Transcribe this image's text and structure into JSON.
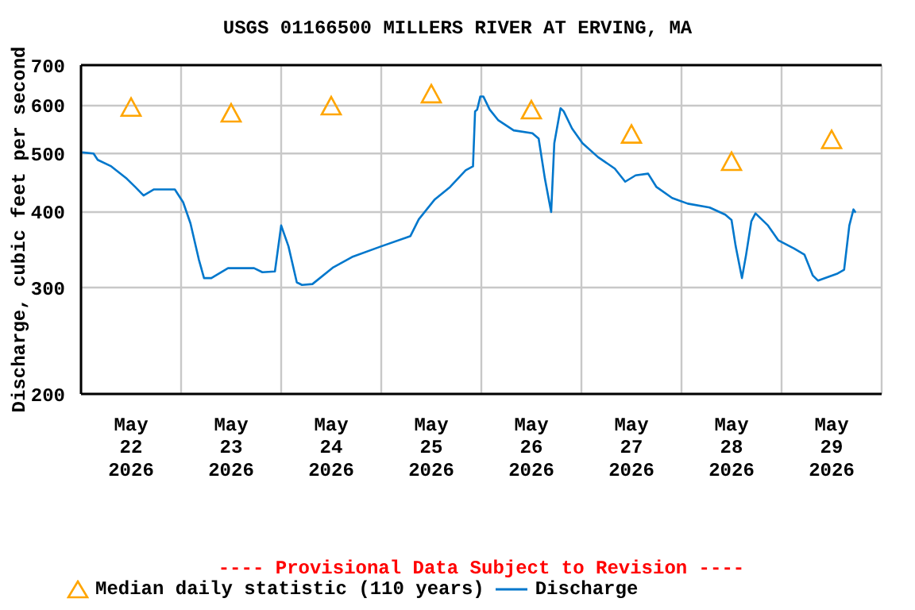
{
  "chart_data": {
    "type": "line",
    "title": "USGS 01166500 MILLERS RIVER AT ERVING, MA",
    "ylabel": "Discharge, cubic feet per second",
    "log": "y",
    "grid": true,
    "legend": "bottom",
    "xlim": [
      "2026-05-22T00:00",
      "2026-05-30T00:00"
    ],
    "xticks": [
      {
        "value": "2026-05-22T00:00",
        "label": null
      },
      {
        "value": "2026-05-22T12:00",
        "label": "May 22 2026"
      },
      {
        "value": "2026-05-23T00:00",
        "label": null
      },
      {
        "value": "2026-05-23T12:00",
        "label": "May 23 2026"
      },
      {
        "value": "2026-05-24T00:00",
        "label": null
      },
      {
        "value": "2026-05-24T12:00",
        "label": "May 24 2026"
      },
      {
        "value": "2026-05-25T00:00",
        "label": null
      },
      {
        "value": "2026-05-25T12:00",
        "label": "May 25 2026"
      },
      {
        "value": "2026-05-26T00:00",
        "label": null
      },
      {
        "value": "2026-05-26T12:00",
        "label": "May 26 2026"
      },
      {
        "value": "2026-05-27T00:00",
        "label": null
      },
      {
        "value": "2026-05-27T12:00",
        "label": "May 27 2026"
      },
      {
        "value": "2026-05-28T00:00",
        "label": null
      },
      {
        "value": "2026-05-28T12:00",
        "label": "May 28 2026"
      },
      {
        "value": "2026-05-29T00:00",
        "label": null
      },
      {
        "value": "2026-05-29T12:00",
        "label": "May 29 2026"
      },
      {
        "value": "2026-05-30T00:00",
        "label": null
      }
    ],
    "ylim": [
      200,
      700
    ],
    "yticks": [
      200,
      300,
      400,
      500,
      600,
      700
    ],
    "annotations": [
      "---- Provisional Data Subject to Revision ----"
    ],
    "series": [
      {
        "name": "Median daily statistic (110 years)",
        "type": "scatter",
        "marker": "triangle",
        "color": "#ffa500",
        "x": [
          "2026-05-22T12:00",
          "2026-05-23T12:00",
          "2026-05-24T12:00",
          "2026-05-25T12:00",
          "2026-05-26T12:00",
          "2026-05-27T12:00",
          "2026-05-28T12:00",
          "2026-05-29T12:00"
        ],
        "values": [
          595,
          582,
          598,
          626,
          589,
          537,
          484,
          526
        ]
      },
      {
        "name": "Discharge",
        "marker": "none",
        "line_style": "solid",
        "color": "#0077cc",
        "x": [
          "2026-05-22T00:15",
          "2026-05-22T03:00",
          "2026-05-22T04:00",
          "2026-05-22T07:15",
          "2026-05-22T11:00",
          "2026-05-22T13:00",
          "2026-05-22T15:00",
          "2026-05-22T17:30",
          "2026-05-22T22:30",
          "2026-05-23T00:30",
          "2026-05-23T02:15",
          "2026-05-23T04:15",
          "2026-05-23T05:30",
          "2026-05-23T07:15",
          "2026-05-23T11:15",
          "2026-05-23T17:30",
          "2026-05-23T19:30",
          "2026-05-23T22:30",
          "2026-05-24T00:00",
          "2026-05-24T01:45",
          "2026-05-24T03:45",
          "2026-05-24T05:00",
          "2026-05-24T07:30",
          "2026-05-24T12:30",
          "2026-05-24T17:00",
          "2026-05-25T00:00",
          "2026-05-25T07:00",
          "2026-05-25T09:00",
          "2026-05-25T12:45",
          "2026-05-25T16:30",
          "2026-05-25T20:15",
          "2026-05-25T22:00",
          "2026-05-25T22:30",
          "2026-05-25T23:00",
          "2026-05-25T23:45",
          "2026-05-26T00:30",
          "2026-05-26T02:00",
          "2026-05-26T04:00",
          "2026-05-26T07:45",
          "2026-05-26T12:15",
          "2026-05-26T13:45",
          "2026-05-26T15:15",
          "2026-05-26T16:45",
          "2026-05-26T17:30",
          "2026-05-26T19:00",
          "2026-05-26T19:45",
          "2026-05-26T21:45",
          "2026-05-27T00:15",
          "2026-05-27T04:00",
          "2026-05-27T08:00",
          "2026-05-27T10:30",
          "2026-05-27T13:00",
          "2026-05-27T16:00",
          "2026-05-27T18:00",
          "2026-05-27T21:45",
          "2026-05-28T01:30",
          "2026-05-28T06:45",
          "2026-05-28T10:30",
          "2026-05-28T12:00",
          "2026-05-28T13:00",
          "2026-05-28T14:30",
          "2026-05-28T15:30",
          "2026-05-28T16:45",
          "2026-05-28T17:45",
          "2026-05-28T20:45",
          "2026-05-28T23:15",
          "2026-05-29T03:00",
          "2026-05-29T05:30",
          "2026-05-29T07:30",
          "2026-05-29T08:45",
          "2026-05-29T13:15",
          "2026-05-29T15:00",
          "2026-05-29T16:15",
          "2026-05-29T17:15",
          "2026-05-29T17:45"
        ],
        "values": [
          502,
          500,
          488,
          476,
          454,
          440,
          426,
          436,
          436,
          415,
          383,
          334,
          311,
          311,
          323,
          323,
          318,
          319,
          380,
          351,
          306,
          303,
          304,
          324,
          337,
          351,
          365,
          389,
          419,
          440,
          469,
          476,
          587,
          591,
          621,
          621,
          591,
          568,
          546,
          540,
          529,
          454,
          400,
          520,
          594,
          587,
          550,
          520,
          493,
          472,
          449,
          460,
          463,
          440,
          422,
          413,
          407,
          396,
          388,
          351,
          311,
          340,
          386,
          398,
          380,
          359,
          348,
          340,
          314,
          308,
          316,
          321,
          380,
          404,
          399
        ]
      }
    ]
  }
}
